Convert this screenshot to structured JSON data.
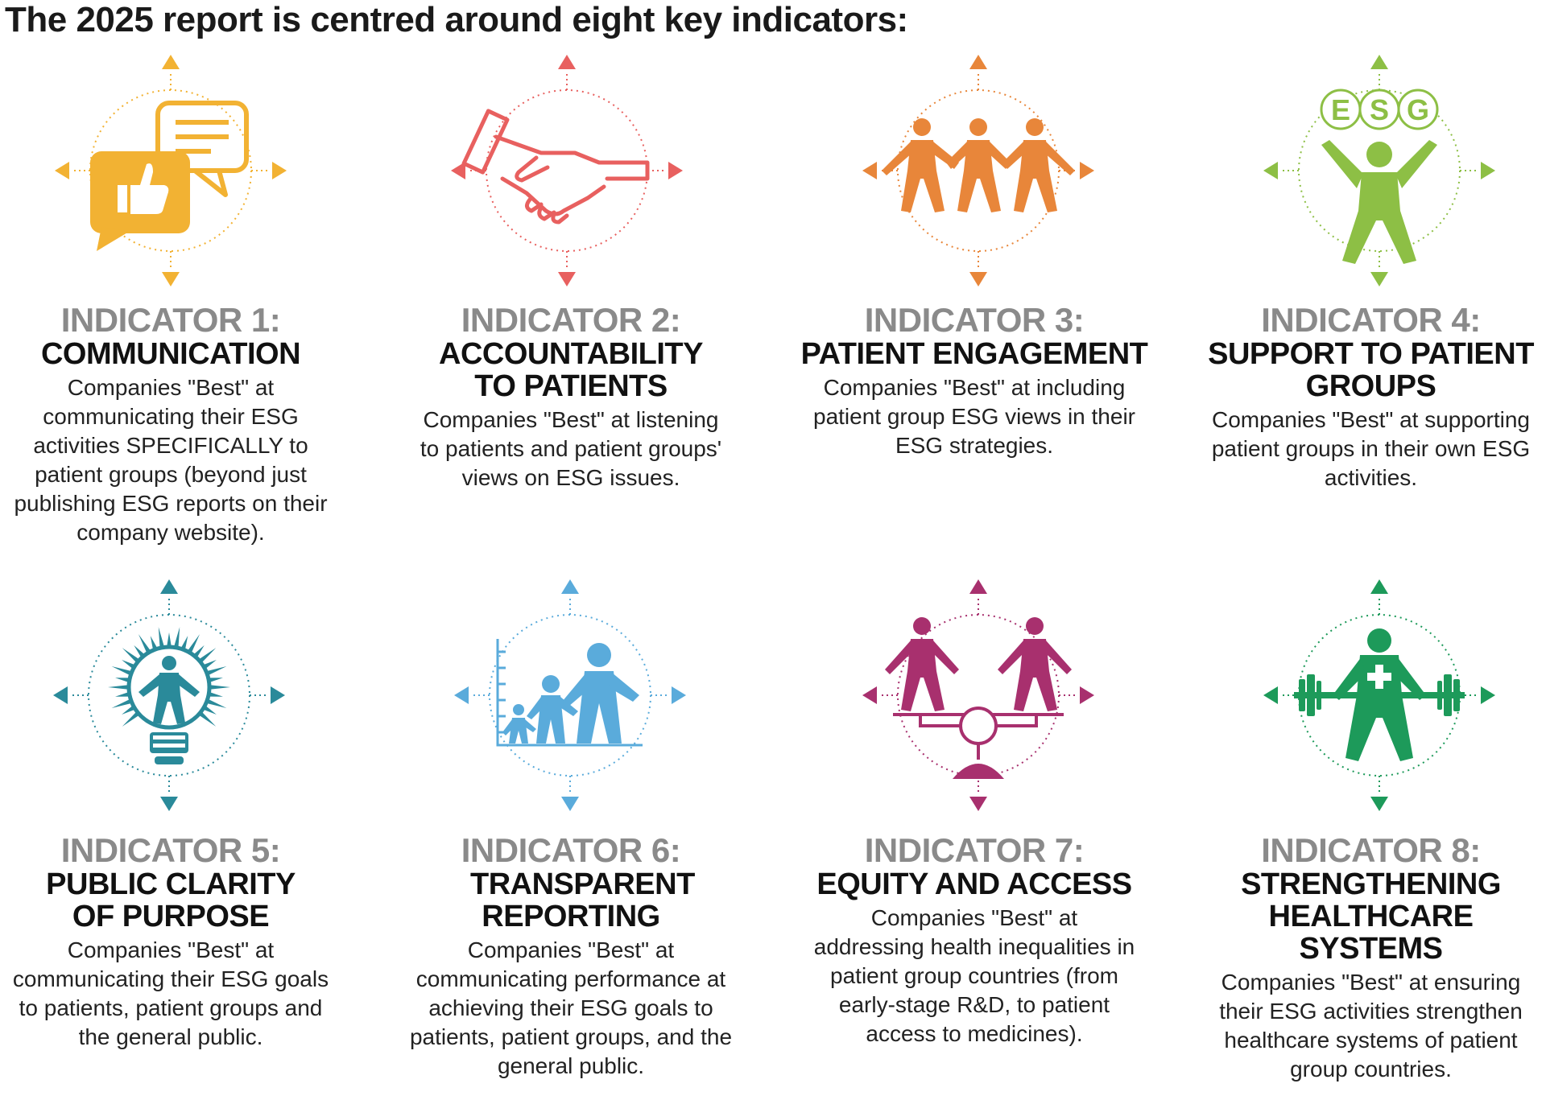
{
  "title": "The 2025 report is centred around eight key indicators:",
  "indicators": [
    {
      "label": "INDICATOR 1:",
      "name": "COMMUNICATION",
      "desc": "Companies \"Best\" at communicating their ESG activities SPECIFICALLY to patient groups (beyond just publishing ESG reports on their company website).",
      "icon": "speech-bubbles-thumbs-up-icon",
      "color": "#f2b233"
    },
    {
      "label": "INDICATOR 2:",
      "name": "ACCOUNTABILITY TO PATIENTS",
      "desc": "Companies \"Best\" at listening to patients and patient groups' views on ESG issues.",
      "icon": "handshake-icon",
      "color": "#e8605f"
    },
    {
      "label": "INDICATOR 3:",
      "name": "PATIENT ENGAGEMENT",
      "desc": "Companies \"Best\" at including patient group ESG views in their ESG strategies.",
      "icon": "people-chain-icon",
      "color": "#e8863a"
    },
    {
      "label": "INDICATOR 4:",
      "name": "SUPPORT TO PATIENT GROUPS",
      "desc": "Companies \"Best\" at supporting patient groups in their own ESG activities.",
      "icon": "person-juggling-esg-icon",
      "color": "#8dbf45",
      "esg_letters": [
        "E",
        "S",
        "G"
      ]
    },
    {
      "label": "INDICATOR 5:",
      "name": "PUBLIC CLARITY OF PURPOSE",
      "desc": "Companies \"Best\" at communicating their ESG goals to patients, patient groups and the general public.",
      "icon": "person-in-lightbulb-icon",
      "color": "#2a8a9a"
    },
    {
      "label": "INDICATOR 6:",
      "name": "TRANSPARENT REPORTING",
      "desc": "Companies \"Best\" at communicating performance at achieving their ESG goals to patients, patient groups, and the general public.",
      "icon": "growing-people-chart-icon",
      "color": "#5aabdb"
    },
    {
      "label": "INDICATOR 7:",
      "name": "EQUITY AND ACCESS",
      "desc": "Companies \"Best\" at addressing health inequalities in patient group countries (from early-stage R&D, to patient access to medicines).",
      "icon": "balance-scale-people-icon",
      "color": "#a8306e"
    },
    {
      "label": "INDICATOR 8:",
      "name": "STRENGTHENING HEALTHCARE SYSTEMS",
      "desc": "Companies \"Best\" at ensuring their ESG activities strengthen healthcare systems of patient group countries.",
      "icon": "weightlifter-medical-cross-icon",
      "color": "#1d9a5a"
    }
  ]
}
